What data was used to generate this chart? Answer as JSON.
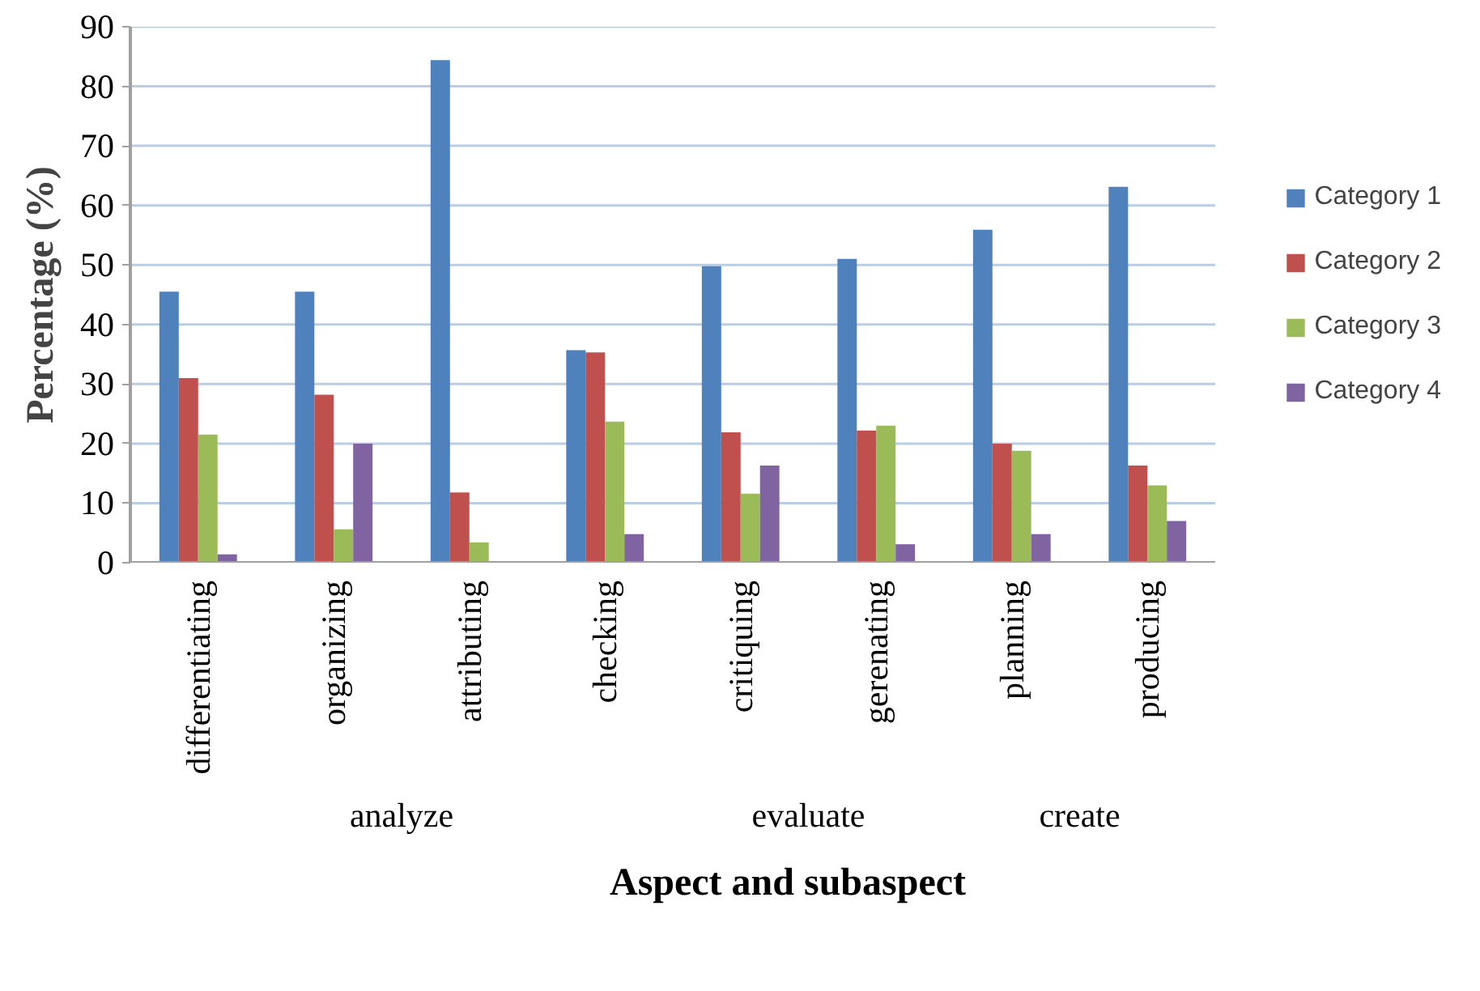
{
  "chart_data": {
    "type": "bar",
    "xlabel": "Aspect and subaspect",
    "ylabel": "Percentage (%)",
    "categories": [
      "differentiating",
      "organizing",
      "attributing",
      "checking",
      "critiquing",
      "gerenating",
      "planning",
      "producing"
    ],
    "series": [
      {
        "name": "Category 1",
        "color": "#4f81bd",
        "values": [
          45.5,
          45.5,
          84.4,
          35.7,
          49.8,
          51,
          55.9,
          63.1
        ]
      },
      {
        "name": "Category 2",
        "color": "#c0504d",
        "values": [
          31,
          28.2,
          11.8,
          35.3,
          21.9,
          22.2,
          20,
          16.3
        ]
      },
      {
        "name": "Category 3",
        "color": "#9bbb59",
        "values": [
          21.5,
          5.6,
          3.4,
          23.7,
          11.6,
          23,
          18.8,
          13
        ]
      },
      {
        "name": "Category 4",
        "color": "#8064a2",
        "values": [
          1.4,
          20,
          0,
          4.8,
          16.3,
          3.1,
          4.8,
          7
        ]
      }
    ],
    "annotations": [
      "analyze",
      "evaluate",
      "create"
    ],
    "ylim": [
      0,
      90
    ],
    "yticks": [
      0,
      10,
      20,
      30,
      40,
      50,
      60,
      70,
      80,
      90
    ],
    "grid": "y",
    "legend": "right"
  }
}
